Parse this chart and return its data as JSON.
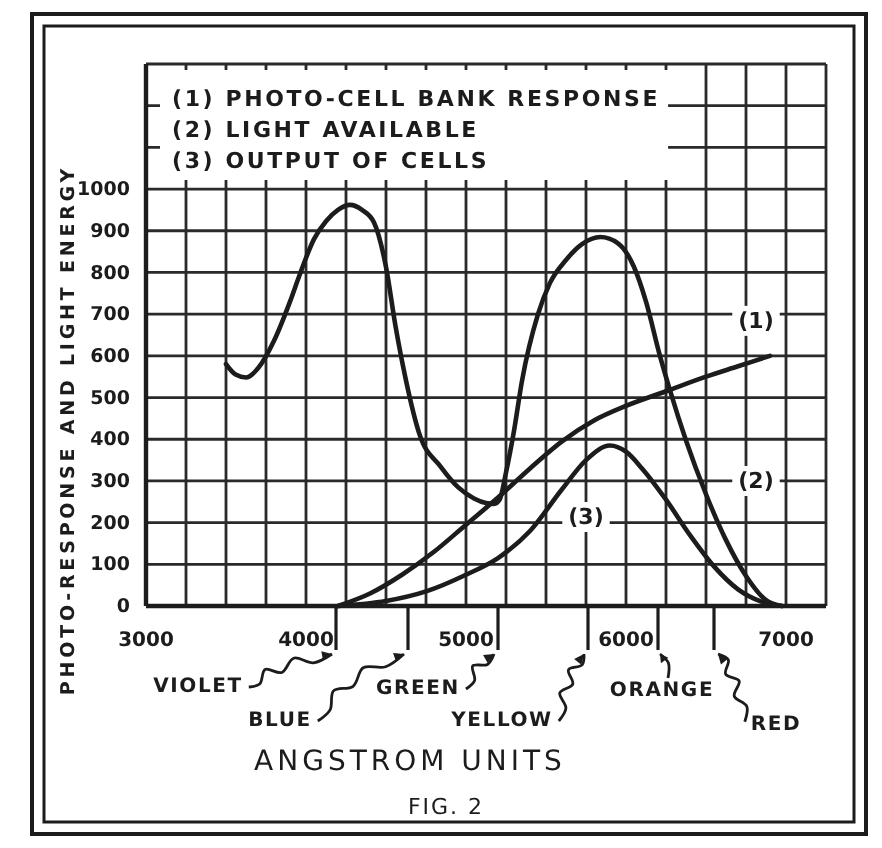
{
  "chart_data": {
    "type": "line",
    "xlabel": "ANGSTROM UNITS",
    "ylabel": "PHOTO-RESPONSE AND LIGHT ENERGY",
    "xlim": [
      3000,
      7250
    ],
    "xticks": [
      3000,
      {
        "value": 3250,
        "label": null
      },
      {
        "value": 3500,
        "label": null
      },
      {
        "value": 3750,
        "label": null
      },
      4000,
      {
        "value": 4250,
        "label": null
      },
      {
        "value": 4500,
        "label": null
      },
      {
        "value": 4750,
        "label": null
      },
      5000,
      {
        "value": 5250,
        "label": null
      },
      {
        "value": 5500,
        "label": null
      },
      {
        "value": 5750,
        "label": null
      },
      6000,
      {
        "value": 6250,
        "label": null
      },
      {
        "value": 6500,
        "label": null
      },
      {
        "value": 6750,
        "label": null
      },
      7000,
      {
        "value": 7250,
        "label": null
      }
    ],
    "ylim": [
      0,
      1300
    ],
    "yticks": [
      0,
      100,
      200,
      300,
      400,
      500,
      600,
      700,
      800,
      900,
      1000,
      {
        "value": 1100,
        "label": null
      },
      {
        "value": 1200,
        "label": null
      },
      {
        "value": 1300,
        "label": null
      }
    ],
    "grid": true,
    "annotations": [
      "(1) PHOTO-CELL BANK RESPONSE",
      "(2) LIGHT AVAILABLE",
      "(3) OUTPUT OF CELLS",
      "VIOLET",
      "BLUE",
      "GREEN",
      "YELLOW",
      "ORANGE",
      "RED",
      "FIG. 2"
    ],
    "series": [
      {
        "name": "(1)",
        "color": "#1c1c1c",
        "x": [
          4200,
          4400,
          4600,
          4800,
          5000,
          5200,
          5400,
          5600,
          5800,
          6000,
          6250,
          6500,
          6700,
          6900
        ],
        "values": [
          0,
          30,
          75,
          130,
          195,
          260,
          330,
          395,
          445,
          480,
          515,
          550,
          575,
          600
        ]
      },
      {
        "name": "(2)",
        "color": "#1c1c1c",
        "x": [
          3500,
          3560,
          3625,
          3700,
          3800,
          3900,
          3960,
          4050,
          4125,
          4200,
          4275,
          4350,
          4425,
          4500,
          4560,
          4625,
          4710,
          4840,
          4950,
          5050,
          5125,
          5175,
          5210,
          5250,
          5300,
          5350,
          5450,
          5525,
          5625,
          5725,
          5840,
          5950,
          6050,
          6125,
          6210,
          6275,
          6375,
          6500,
          6625,
          6750,
          6875,
          6975
        ],
        "values": [
          580,
          555,
          548,
          570,
          636,
          730,
          794,
          880,
          923,
          950,
          962,
          950,
          920,
          813,
          670,
          541,
          411,
          335,
          285,
          258,
          247,
          245,
          255,
          320,
          420,
          540,
          700,
          775,
          830,
          868,
          885,
          870,
          813,
          730,
          603,
          517,
          397,
          268,
          158,
          72,
          14,
          0
        ]
      },
      {
        "name": "(3)",
        "color": "#1c1c1c",
        "x": [
          4200,
          4500,
          4750,
          5000,
          5200,
          5400,
          5600,
          5750,
          5900,
          6000,
          6100,
          6250,
          6400,
          6550,
          6700,
          6850,
          6975
        ],
        "values": [
          0,
          12,
          35,
          75,
          115,
          180,
          280,
          350,
          385,
          370,
          330,
          255,
          170,
          95,
          40,
          10,
          0
        ]
      }
    ]
  }
}
